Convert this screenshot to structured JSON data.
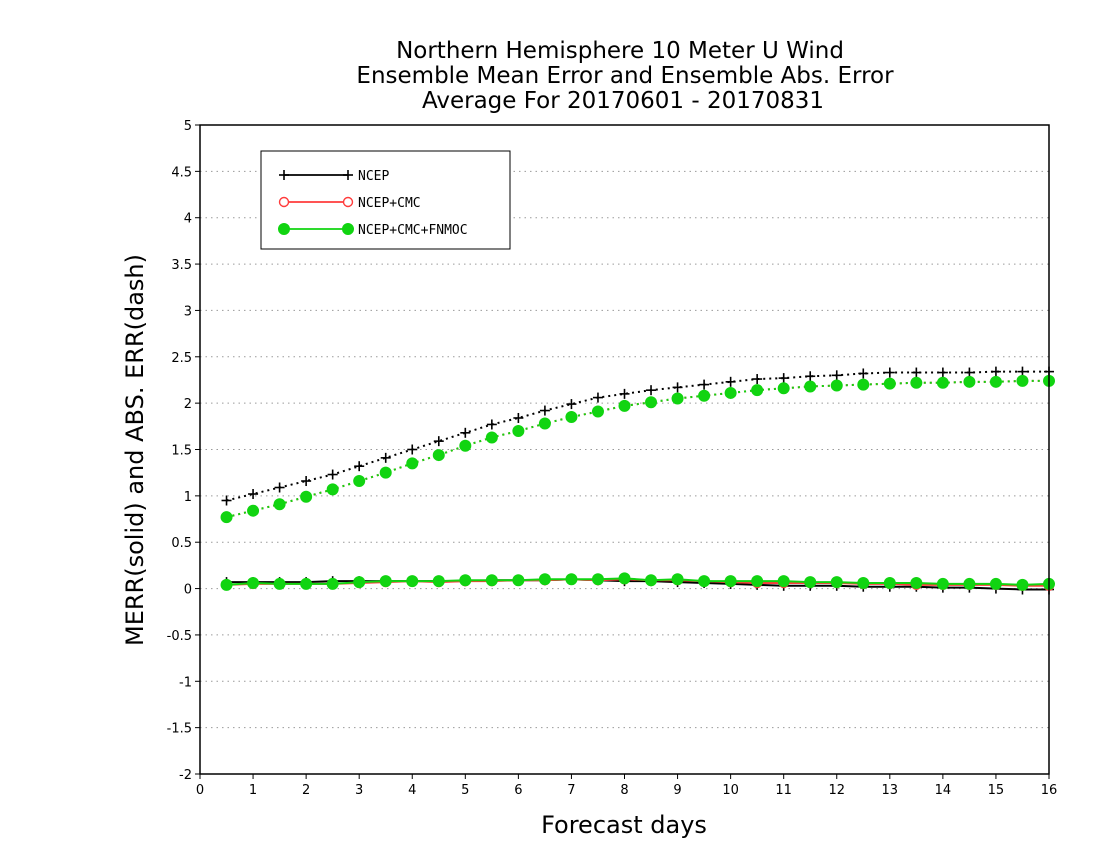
{
  "chart_data": {
    "type": "line",
    "title_lines": [
      "Northern Hemisphere 10 Meter U Wind",
      "Ensemble Mean Error and Ensemble Abs. Error",
      "Average For 20170601 - 20170831"
    ],
    "xlabel": "Forecast days",
    "ylabel": "MERR(solid) and ABS. ERR(dash)",
    "xlim": [
      0,
      16
    ],
    "ylim": [
      -2,
      5
    ],
    "x_ticks": [
      "0",
      "1",
      "2",
      "3",
      "4",
      "5",
      "6",
      "7",
      "8",
      "9",
      "10",
      "11",
      "12",
      "13",
      "14",
      "15",
      "16"
    ],
    "y_ticks": [
      "-2",
      "-1.5",
      "-1",
      "-0.5",
      "0",
      "0.5",
      "1",
      "1.5",
      "2",
      "2.5",
      "3",
      "3.5",
      "4",
      "4.5",
      "5"
    ],
    "grid": "horizontal-dotted",
    "legend_position": "top-left",
    "x": [
      0.5,
      1,
      1.5,
      2,
      2.5,
      3,
      3.5,
      4,
      4.5,
      5,
      5.5,
      6,
      6.5,
      7,
      7.5,
      8,
      8.5,
      9,
      9.5,
      10,
      10.5,
      11,
      11.5,
      12,
      12.5,
      13,
      13.5,
      14,
      14.5,
      15,
      15.5,
      16
    ],
    "series": [
      {
        "name": "NCEP",
        "color": "#000000",
        "marker": "plus",
        "merr": [
          0.07,
          0.07,
          0.07,
          0.07,
          0.08,
          0.08,
          0.08,
          0.08,
          0.08,
          0.08,
          0.09,
          0.09,
          0.09,
          0.1,
          0.09,
          0.08,
          0.08,
          0.07,
          0.06,
          0.05,
          0.04,
          0.03,
          0.03,
          0.03,
          0.02,
          0.02,
          0.02,
          0.01,
          0.01,
          0.0,
          -0.01,
          -0.01
        ],
        "abs_err": [
          0.95,
          1.02,
          1.09,
          1.16,
          1.23,
          1.32,
          1.41,
          1.5,
          1.59,
          1.68,
          1.77,
          1.84,
          1.92,
          1.99,
          2.06,
          2.1,
          2.14,
          2.17,
          2.2,
          2.23,
          2.26,
          2.27,
          2.29,
          2.3,
          2.32,
          2.33,
          2.33,
          2.33,
          2.33,
          2.34,
          2.34,
          2.34
        ]
      },
      {
        "name": "NCEP+CMC",
        "color": "#ff3b3b",
        "marker": "open-circle",
        "merr": [
          0.04,
          0.05,
          0.05,
          0.05,
          0.05,
          0.06,
          0.07,
          0.08,
          0.07,
          0.08,
          0.08,
          0.09,
          0.09,
          0.1,
          0.09,
          0.1,
          0.09,
          0.09,
          0.08,
          0.07,
          0.06,
          0.06,
          0.06,
          0.06,
          0.05,
          0.05,
          0.04,
          0.04,
          0.04,
          0.04,
          0.03,
          0.03
        ],
        "abs_err": [
          0.77,
          0.84,
          0.91,
          0.99,
          1.07,
          1.16,
          1.25,
          1.35,
          1.44,
          1.54,
          1.63,
          1.7,
          1.78,
          1.85,
          1.91,
          1.97,
          2.01,
          2.05,
          2.08,
          2.11,
          2.14,
          2.16,
          2.18,
          2.19,
          2.2,
          2.21,
          2.22,
          2.22,
          2.23,
          2.23,
          2.24,
          2.24
        ]
      },
      {
        "name": "NCEP+CMC+FNMOC",
        "color": "#11d411",
        "marker": "filled-circle",
        "merr": [
          0.04,
          0.06,
          0.05,
          0.05,
          0.05,
          0.07,
          0.08,
          0.08,
          0.08,
          0.09,
          0.09,
          0.09,
          0.1,
          0.1,
          0.1,
          0.11,
          0.09,
          0.1,
          0.08,
          0.08,
          0.08,
          0.08,
          0.07,
          0.07,
          0.06,
          0.06,
          0.06,
          0.05,
          0.05,
          0.05,
          0.04,
          0.05
        ],
        "abs_err": [
          0.77,
          0.84,
          0.91,
          0.99,
          1.07,
          1.16,
          1.25,
          1.35,
          1.44,
          1.54,
          1.63,
          1.7,
          1.78,
          1.85,
          1.91,
          1.97,
          2.01,
          2.05,
          2.08,
          2.11,
          2.14,
          2.16,
          2.18,
          2.19,
          2.2,
          2.21,
          2.22,
          2.22,
          2.23,
          2.23,
          2.24,
          2.24
        ]
      }
    ]
  }
}
